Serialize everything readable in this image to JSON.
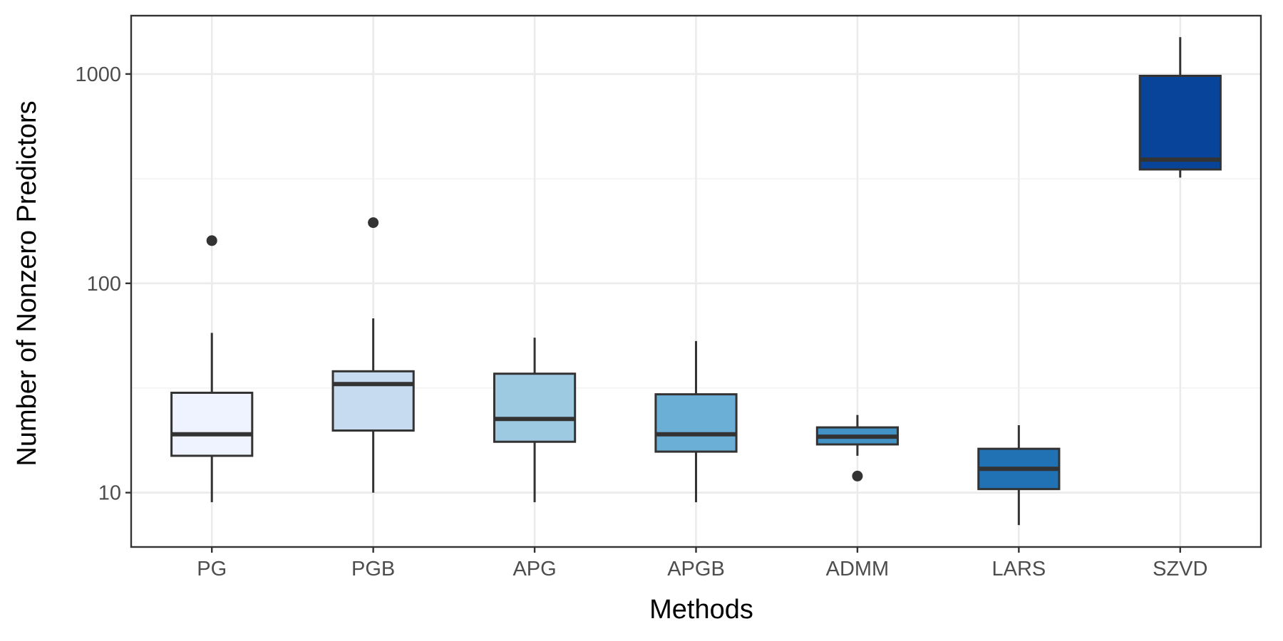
{
  "chart_data": {
    "type": "boxplot",
    "title": "",
    "xlabel": "Methods",
    "ylabel": "Number of Nonzero Predictors",
    "yscale": "log10",
    "ylim": [
      5.5,
      1900
    ],
    "y_ticks": [
      10,
      100,
      1000
    ],
    "y_tick_labels": [
      "10",
      "100",
      "1000"
    ],
    "categories": [
      "PG",
      "PGB",
      "APG",
      "APGB",
      "ADMM",
      "LARS",
      "SZVD"
    ],
    "boxes": [
      {
        "name": "PG",
        "whisker_low": 9,
        "q1": 15,
        "median": 19,
        "q3": 30,
        "whisker_high": 58,
        "outliers": [
          160
        ],
        "fill": "#eff3ff"
      },
      {
        "name": "PGB",
        "whisker_low": 10,
        "q1": 19.8,
        "median": 33,
        "q3": 38,
        "whisker_high": 68,
        "outliers": [
          195
        ],
        "fill": "#c6dbef"
      },
      {
        "name": "APG",
        "whisker_low": 9,
        "q1": 17.5,
        "median": 22.5,
        "q3": 37,
        "whisker_high": 55,
        "outliers": [],
        "fill": "#9ecae1"
      },
      {
        "name": "APGB",
        "whisker_low": 9,
        "q1": 15.7,
        "median": 19,
        "q3": 29.5,
        "whisker_high": 53,
        "outliers": [],
        "fill": "#6baed6"
      },
      {
        "name": "ADMM",
        "whisker_low": 15,
        "q1": 17,
        "median": 18.5,
        "q3": 20.5,
        "whisker_high": 23.5,
        "outliers": [
          12
        ],
        "fill": "#4292c6"
      },
      {
        "name": "LARS",
        "whisker_low": 7,
        "q1": 10.4,
        "median": 13,
        "q3": 16.2,
        "whisker_high": 21,
        "outliers": [],
        "fill": "#2171b5"
      },
      {
        "name": "SZVD",
        "whisker_low": 320,
        "q1": 350,
        "median": 390,
        "q3": 980,
        "whisker_high": 1500,
        "outliers": [],
        "fill": "#08459a"
      }
    ]
  }
}
